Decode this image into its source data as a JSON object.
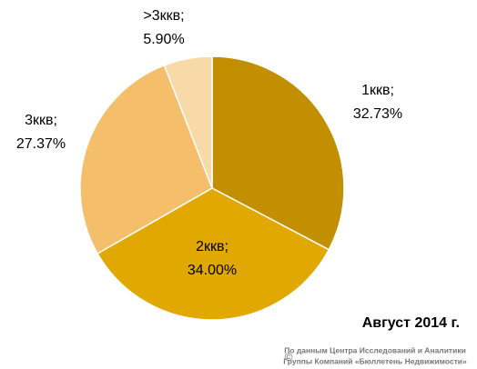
{
  "chart_data": {
    "type": "pie",
    "categories": [
      "1ккв;",
      "2ккв;",
      "3ккв;",
      ">3ккв;"
    ],
    "values": [
      32.73,
      34.0,
      27.37,
      5.9
    ],
    "value_labels": [
      "32.73%",
      "34.00%",
      "27.37%",
      "5.90%"
    ],
    "colors": [
      "#c28f00",
      "#e0a800",
      "#f5be6a",
      "#f8d9a8"
    ],
    "annotation": "Август 2014 г.",
    "copyright": "©",
    "source": [
      "По данным Центра Исследований и Аналитики",
      "Группы Компаний «Бюллетень Недвижимости»"
    ]
  }
}
